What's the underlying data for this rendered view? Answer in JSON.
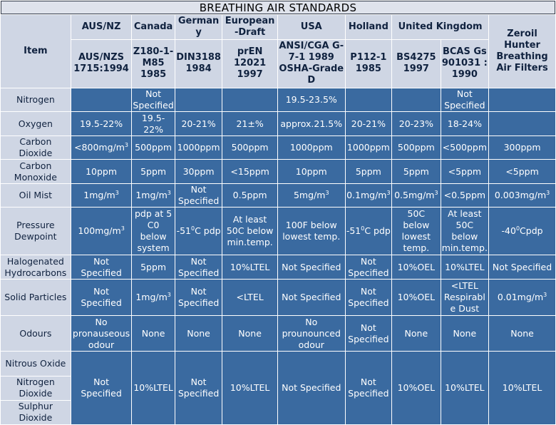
{
  "title": "BREATHING AIR STANDARDS",
  "item_header": "Item",
  "columns": [
    {
      "country": "AUS/NZ",
      "standard": "AUS/NZS 1715:1994"
    },
    {
      "country": "Canada",
      "standard": "Z180-1-M85 1985"
    },
    {
      "country": "Germany",
      "standard": "DIN3188 1984"
    },
    {
      "country": "European-Draft",
      "standard": "prEN 12021 1997"
    },
    {
      "country": "USA",
      "standard": "ANSI/CGA G-7-1 1989 OSHA-Grade D"
    },
    {
      "country": "Holland",
      "standard": "P112-1 1985"
    },
    {
      "country": "United Kingdom",
      "standard": "BS4275 1997"
    },
    {
      "country": "",
      "standard": "BCAS Gs 901031 : 1990"
    },
    {
      "country": "Zeroil Hunter Breathing Air Filters",
      "standard": ""
    }
  ],
  "rows": [
    {
      "item": "Nitrogen",
      "values": [
        "",
        "Not Specified",
        "",
        "",
        "19.5-23.5%",
        "",
        "",
        "Not Specified",
        ""
      ]
    },
    {
      "item": "Oxygen",
      "values": [
        "19.5-22%",
        "19.5-22%",
        "20-21%",
        "21±%",
        "approx.21.5%",
        "20-21%",
        "20-23%",
        "18-24%",
        ""
      ]
    },
    {
      "item": "Carbon Dioxide",
      "values": [
        "<800mg/m",
        "500ppm",
        "1000ppm",
        "500ppm",
        "1000ppm",
        "1000ppm",
        "500ppm",
        "<500ppm",
        "300ppm"
      ]
    },
    {
      "item": "Carbon Monoxide",
      "values": [
        "10ppm",
        "5ppm",
        "30ppm",
        "<15ppm",
        "10ppm",
        "5ppm",
        "5ppm",
        "<5ppm",
        "<5ppm"
      ]
    },
    {
      "item": "Oil Mist",
      "values": [
        "1mg/m",
        "1mg/m",
        "Not Specified",
        "0.5ppm",
        "5mg/m",
        "0.1mg/m",
        "0.5mg/m",
        "<0.5ppm",
        "0.003mg/m"
      ]
    },
    {
      "item": "Pressure Dewpoint",
      "values": [
        "100mg/m",
        "pdp at 5 C0 below system",
        "-51C pdp",
        "At least 50C below min.temp.",
        "100F below lowest temp.",
        "-51C pdp",
        "50C below lowest temp.",
        "At least 50C below min.temp.",
        "-40Cpdp"
      ]
    },
    {
      "item": "Halogenated Hydrocarbons",
      "values": [
        "Not Specified",
        "5ppm",
        "Not Specified",
        "10%LTEL",
        "Not Specified",
        "Not Specified",
        "10%OEL",
        "10%LTEL",
        "Not Specified"
      ]
    },
    {
      "item": "Solid Particles",
      "values": [
        "Not Specified",
        "1mg/m",
        "Not Specified",
        "<LTEL",
        "Not Specified",
        "Not Specified",
        "10%OEL",
        "<LTEL Respirable Dust",
        "0.01mg/m"
      ]
    },
    {
      "item": "Odours",
      "values": [
        "No pronauseous odour",
        "None",
        "None",
        "None",
        "No prounounced odour",
        "Not Specified",
        "None",
        "None",
        "None"
      ]
    },
    {
      "items": [
        "Nitrous Oxide",
        "Nitrogen Dioxide",
        "Sulphur Dioxide"
      ],
      "values": [
        "Not Specified",
        "10%LTEL",
        "Not Specified",
        "10%LTEL",
        "Not Specified",
        "Not Specified",
        "10%OEL",
        "10%LTEL",
        "10%LTEL"
      ]
    }
  ],
  "superscripts": {
    "cubed": "3",
    "degree": "0"
  }
}
